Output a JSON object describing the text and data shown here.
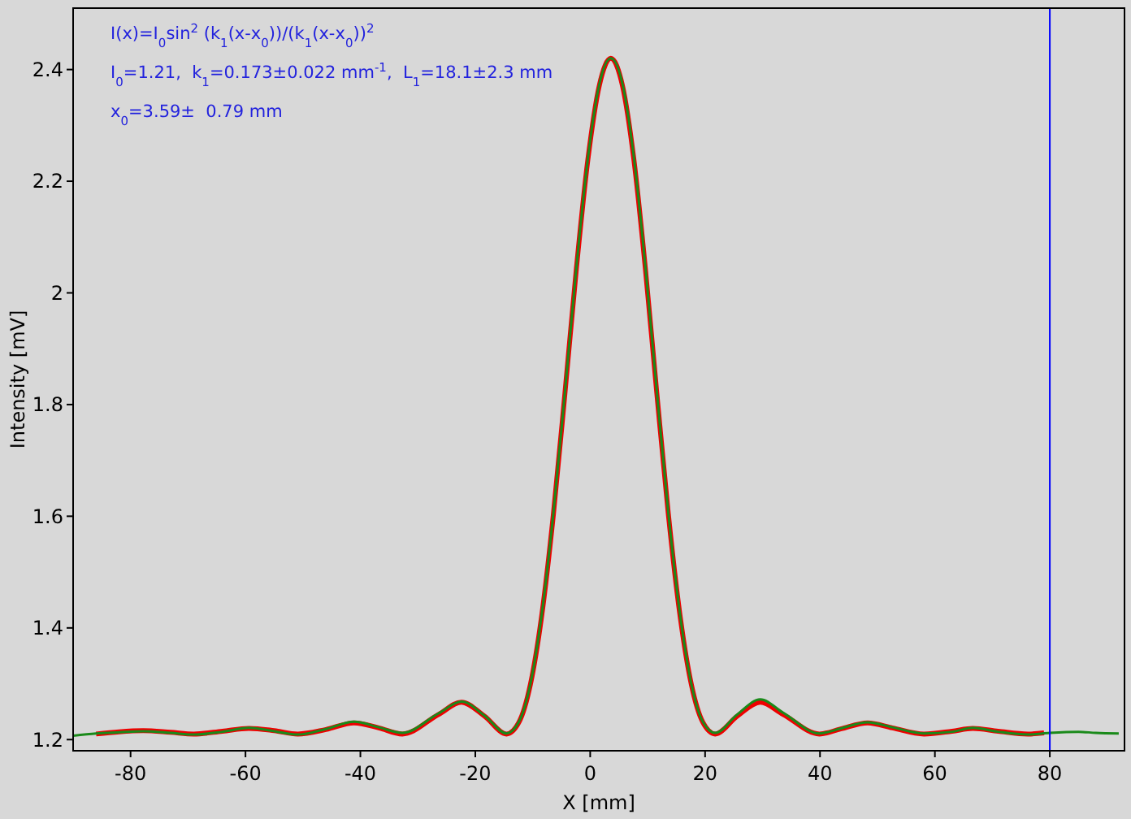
{
  "chart_data": {
    "type": "line",
    "xlabel": "X [mm]",
    "ylabel": "Intensity [mV]",
    "xlim": [
      -90,
      93
    ],
    "ylim": [
      1.18,
      2.51
    ],
    "xticks": [
      -80,
      -60,
      -40,
      -20,
      0,
      20,
      40,
      60,
      80
    ],
    "yticks": [
      1.2,
      1.4,
      1.6,
      1.8,
      2,
      2.2,
      2.4
    ],
    "grid": false,
    "annotations": [
      "I(x)=I$_{0}$sin$^{2}$ (k$_{1}$(x-x$_{0}$))/(k$_{1}$(x-x$_{0}$))$^{2}$",
      "I$_{0}$=1.21,  k$_{1}$=0.173±0.022 mm$^{-1}$,  L$_{1}$=18.1±2.3 mm",
      "x$_{0}$=3.59±  0.79 mm"
    ],
    "ref_lines": [
      {
        "axis": "x",
        "value": 80,
        "color": "#0000ff"
      }
    ],
    "series": [
      {
        "color": "#1a8a1a",
        "x": [
          -90,
          -86,
          -82,
          -77.8,
          -73,
          -69,
          -64,
          -59.4,
          -55,
          -50.9,
          -46,
          -41.1,
          -36.8,
          -32.7,
          -26.4,
          -22.4,
          -18.4,
          -14.57,
          -12.4,
          -10.4,
          -8.4,
          -6.4,
          -4.4,
          -2.4,
          -0.4,
          1.6,
          3.59,
          5.6,
          7.6,
          9.6,
          11.6,
          13.6,
          15.6,
          17.6,
          19.6,
          21.75,
          25.6,
          29.6,
          33.6,
          39.9,
          43.6,
          48.3,
          52.6,
          58.1,
          63,
          66.6,
          71,
          76.2,
          80,
          85,
          88,
          92
        ],
        "values": [
          1.207,
          1.211,
          1.213,
          1.215,
          1.212,
          1.209,
          1.214,
          1.221,
          1.215,
          1.209,
          1.219,
          1.232,
          1.222,
          1.212,
          1.247,
          1.268,
          1.243,
          1.211,
          1.232,
          1.3,
          1.427,
          1.606,
          1.822,
          2.046,
          2.241,
          2.374,
          2.42,
          2.375,
          2.243,
          2.048,
          1.823,
          1.606,
          1.427,
          1.3,
          1.232,
          1.212,
          1.245,
          1.272,
          1.248,
          1.211,
          1.22,
          1.231,
          1.222,
          1.211,
          1.214,
          1.221,
          1.214,
          1.209,
          1.212,
          1.214,
          1.212,
          1.211
        ]
      },
      {
        "color": "#ee0000",
        "x": [
          -86,
          -82,
          -77.8,
          -73,
          -69,
          -64,
          -59.4,
          -55,
          -50.9,
          -46,
          -41.1,
          -36.8,
          -32.7,
          -26.4,
          -22.4,
          -18.4,
          -14.57,
          -12.4,
          -10.4,
          -8.4,
          -6.4,
          -4.4,
          -2.4,
          -0.4,
          1.6,
          3.59,
          5.6,
          7.6,
          9.6,
          11.6,
          13.6,
          15.6,
          17.6,
          19.6,
          21.75,
          25.6,
          29.6,
          33.6,
          39.9,
          43.6,
          48.3,
          52.6,
          58.1,
          63,
          66.6,
          71,
          76.2,
          79
        ],
        "values": [
          1.21,
          1.214,
          1.216,
          1.213,
          1.21,
          1.215,
          1.22,
          1.216,
          1.21,
          1.218,
          1.23,
          1.221,
          1.21,
          1.245,
          1.267,
          1.242,
          1.21,
          1.231,
          1.299,
          1.425,
          1.604,
          1.82,
          2.044,
          2.239,
          2.372,
          2.42,
          2.372,
          2.239,
          2.044,
          1.82,
          1.604,
          1.425,
          1.299,
          1.231,
          1.21,
          1.242,
          1.267,
          1.245,
          1.21,
          1.219,
          1.23,
          1.221,
          1.21,
          1.215,
          1.22,
          1.215,
          1.21,
          1.212
        ]
      }
    ]
  }
}
